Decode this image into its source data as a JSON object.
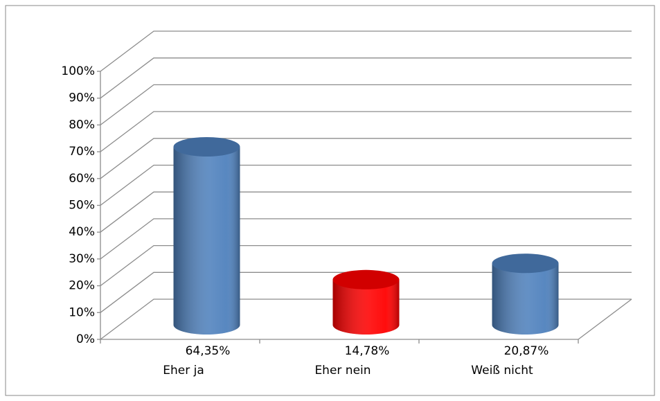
{
  "chart_data": {
    "type": "cylinder",
    "categories": [
      "Eher ja",
      "Eher nein",
      "Weiß nicht"
    ],
    "values": [
      64.35,
      14.78,
      20.87
    ],
    "value_labels": [
      "64,35%",
      "14,78%",
      "20,87%"
    ],
    "colors": [
      "#4f81bd",
      "#ff0000",
      "#4f81bd"
    ],
    "ylim": [
      0,
      100
    ],
    "yticks": [
      {
        "value": 0,
        "label": "0%"
      },
      {
        "value": 10,
        "label": "10%"
      },
      {
        "value": 20,
        "label": "20%"
      },
      {
        "value": 30,
        "label": "30%"
      },
      {
        "value": 40,
        "label": "40%"
      },
      {
        "value": 50,
        "label": "50%"
      },
      {
        "value": 60,
        "label": "60%"
      },
      {
        "value": 70,
        "label": "70%"
      },
      {
        "value": 80,
        "label": "80%"
      },
      {
        "value": 90,
        "label": "90%"
      },
      {
        "value": 100,
        "label": "100%"
      }
    ],
    "grid": true
  }
}
